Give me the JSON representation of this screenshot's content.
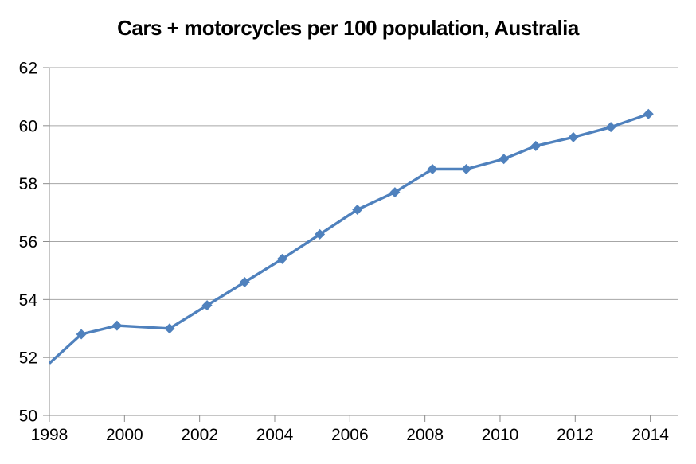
{
  "chart_data": {
    "type": "line",
    "title": "Cars + motorcycles per 100 population, Australia",
    "xlabel": "",
    "ylabel": "",
    "xlim": [
      1998,
      2014.75
    ],
    "ylim": [
      50,
      62
    ],
    "x_ticks": [
      1998,
      2000,
      2002,
      2004,
      2006,
      2008,
      2010,
      2012,
      2014
    ],
    "y_ticks": [
      50,
      52,
      54,
      56,
      58,
      60,
      62
    ],
    "grid": "horizontal-only",
    "legend": "none",
    "series": [
      {
        "name": "Cars + motorcycles per 100 population",
        "color": "#4F81BD",
        "marker": "diamond",
        "points": [
          {
            "x": 1998.0,
            "y": 51.8,
            "marker": false
          },
          {
            "x": 1998.85,
            "y": 52.8
          },
          {
            "x": 1999.8,
            "y": 53.1
          },
          {
            "x": 2001.2,
            "y": 53.0
          },
          {
            "x": 2002.2,
            "y": 53.8
          },
          {
            "x": 2003.2,
            "y": 54.6
          },
          {
            "x": 2004.2,
            "y": 55.4
          },
          {
            "x": 2005.2,
            "y": 56.25
          },
          {
            "x": 2006.2,
            "y": 57.1
          },
          {
            "x": 2007.2,
            "y": 57.7
          },
          {
            "x": 2008.2,
            "y": 58.5
          },
          {
            "x": 2009.1,
            "y": 58.5
          },
          {
            "x": 2010.1,
            "y": 58.85
          },
          {
            "x": 2010.95,
            "y": 59.3
          },
          {
            "x": 2011.95,
            "y": 59.6
          },
          {
            "x": 2012.95,
            "y": 59.95
          },
          {
            "x": 2013.95,
            "y": 60.4
          }
        ]
      }
    ]
  },
  "colors": {
    "series_line": "#4F81BD",
    "marker_fill": "#4F81BD",
    "gridline": "#A6A6A6",
    "axis_line": "#8C8C8C",
    "tick_text": "#000000",
    "background": "#FFFFFF"
  }
}
